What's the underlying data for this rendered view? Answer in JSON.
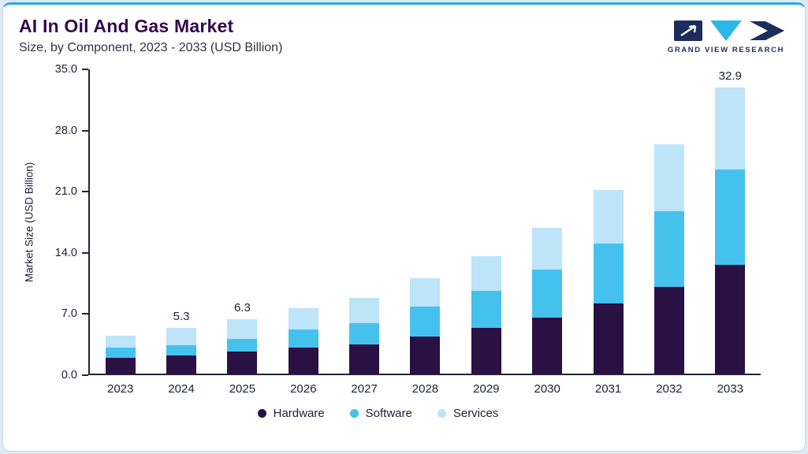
{
  "header": {
    "title": "AI In Oil And Gas Market",
    "subtitle": "Size, by Component, 2023 - 2033 (USD Billion)",
    "logo_text": "GRAND VIEW RESEARCH"
  },
  "colors": {
    "accent_top_border": "#2aa9e0",
    "title_text": "#31094e",
    "axis_text": "#20223a",
    "logo_navy": "#1b2d5b",
    "logo_cyan": "#2bb8e6"
  },
  "chart_data": {
    "type": "bar",
    "stacked": true,
    "title": "AI In Oil And Gas Market",
    "subtitle": "Size, by Component, 2023 - 2033 (USD Billion)",
    "xlabel": "",
    "ylabel": "Market Size (USD Billion)",
    "ylim": [
      0,
      35
    ],
    "ytick_labels": [
      "0.0",
      "7.0",
      "14.0",
      "21.0",
      "28.0",
      "35.0"
    ],
    "grid": false,
    "legend_position": "bottom",
    "categories": [
      "2023",
      "2024",
      "2025",
      "2026",
      "2027",
      "2028",
      "2029",
      "2030",
      "2031",
      "2032",
      "2033"
    ],
    "series": [
      {
        "name": "Hardware",
        "color": "#2a1144",
        "values": [
          1.8,
          2.1,
          2.5,
          3.0,
          3.4,
          4.3,
          5.3,
          6.4,
          8.1,
          10.0,
          12.5
        ]
      },
      {
        "name": "Software",
        "color": "#45c1ee",
        "values": [
          1.2,
          1.2,
          1.5,
          2.1,
          2.4,
          3.4,
          4.2,
          5.6,
          6.9,
          8.7,
          11.0
        ]
      },
      {
        "name": "Services",
        "color": "#bde4f9",
        "values": [
          1.4,
          2.0,
          2.3,
          2.4,
          2.9,
          3.3,
          4.0,
          4.8,
          6.1,
          7.7,
          9.4
        ]
      }
    ],
    "totals": [
      4.4,
      5.3,
      6.3,
      7.5,
      8.7,
      11.0,
      13.5,
      16.8,
      21.1,
      26.4,
      32.9
    ],
    "total_labels": [
      "",
      "5.3",
      "6.3",
      "",
      "",
      "",
      "",
      "",
      "",
      "",
      "32.9"
    ]
  }
}
